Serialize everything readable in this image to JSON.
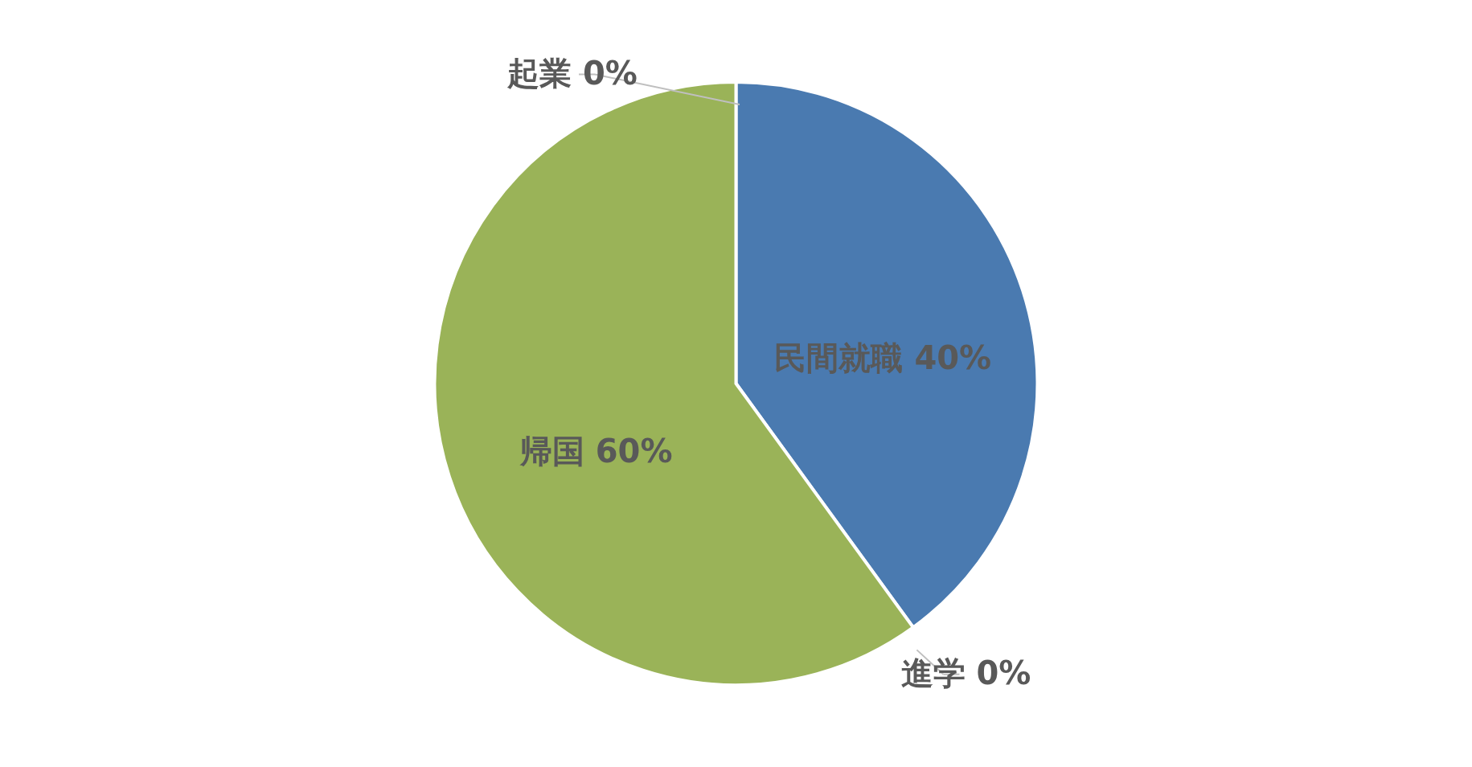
{
  "chart_data": {
    "type": "pie",
    "categories": [
      "民間就職",
      "進学",
      "帰国",
      "起業"
    ],
    "values": [
      40,
      0,
      60,
      0
    ],
    "value_labels": [
      "40%",
      "0%",
      "60%",
      "0%"
    ],
    "colors": [
      "#4a7ab0",
      "#c0504d",
      "#9ab358",
      "#8064a2"
    ]
  }
}
